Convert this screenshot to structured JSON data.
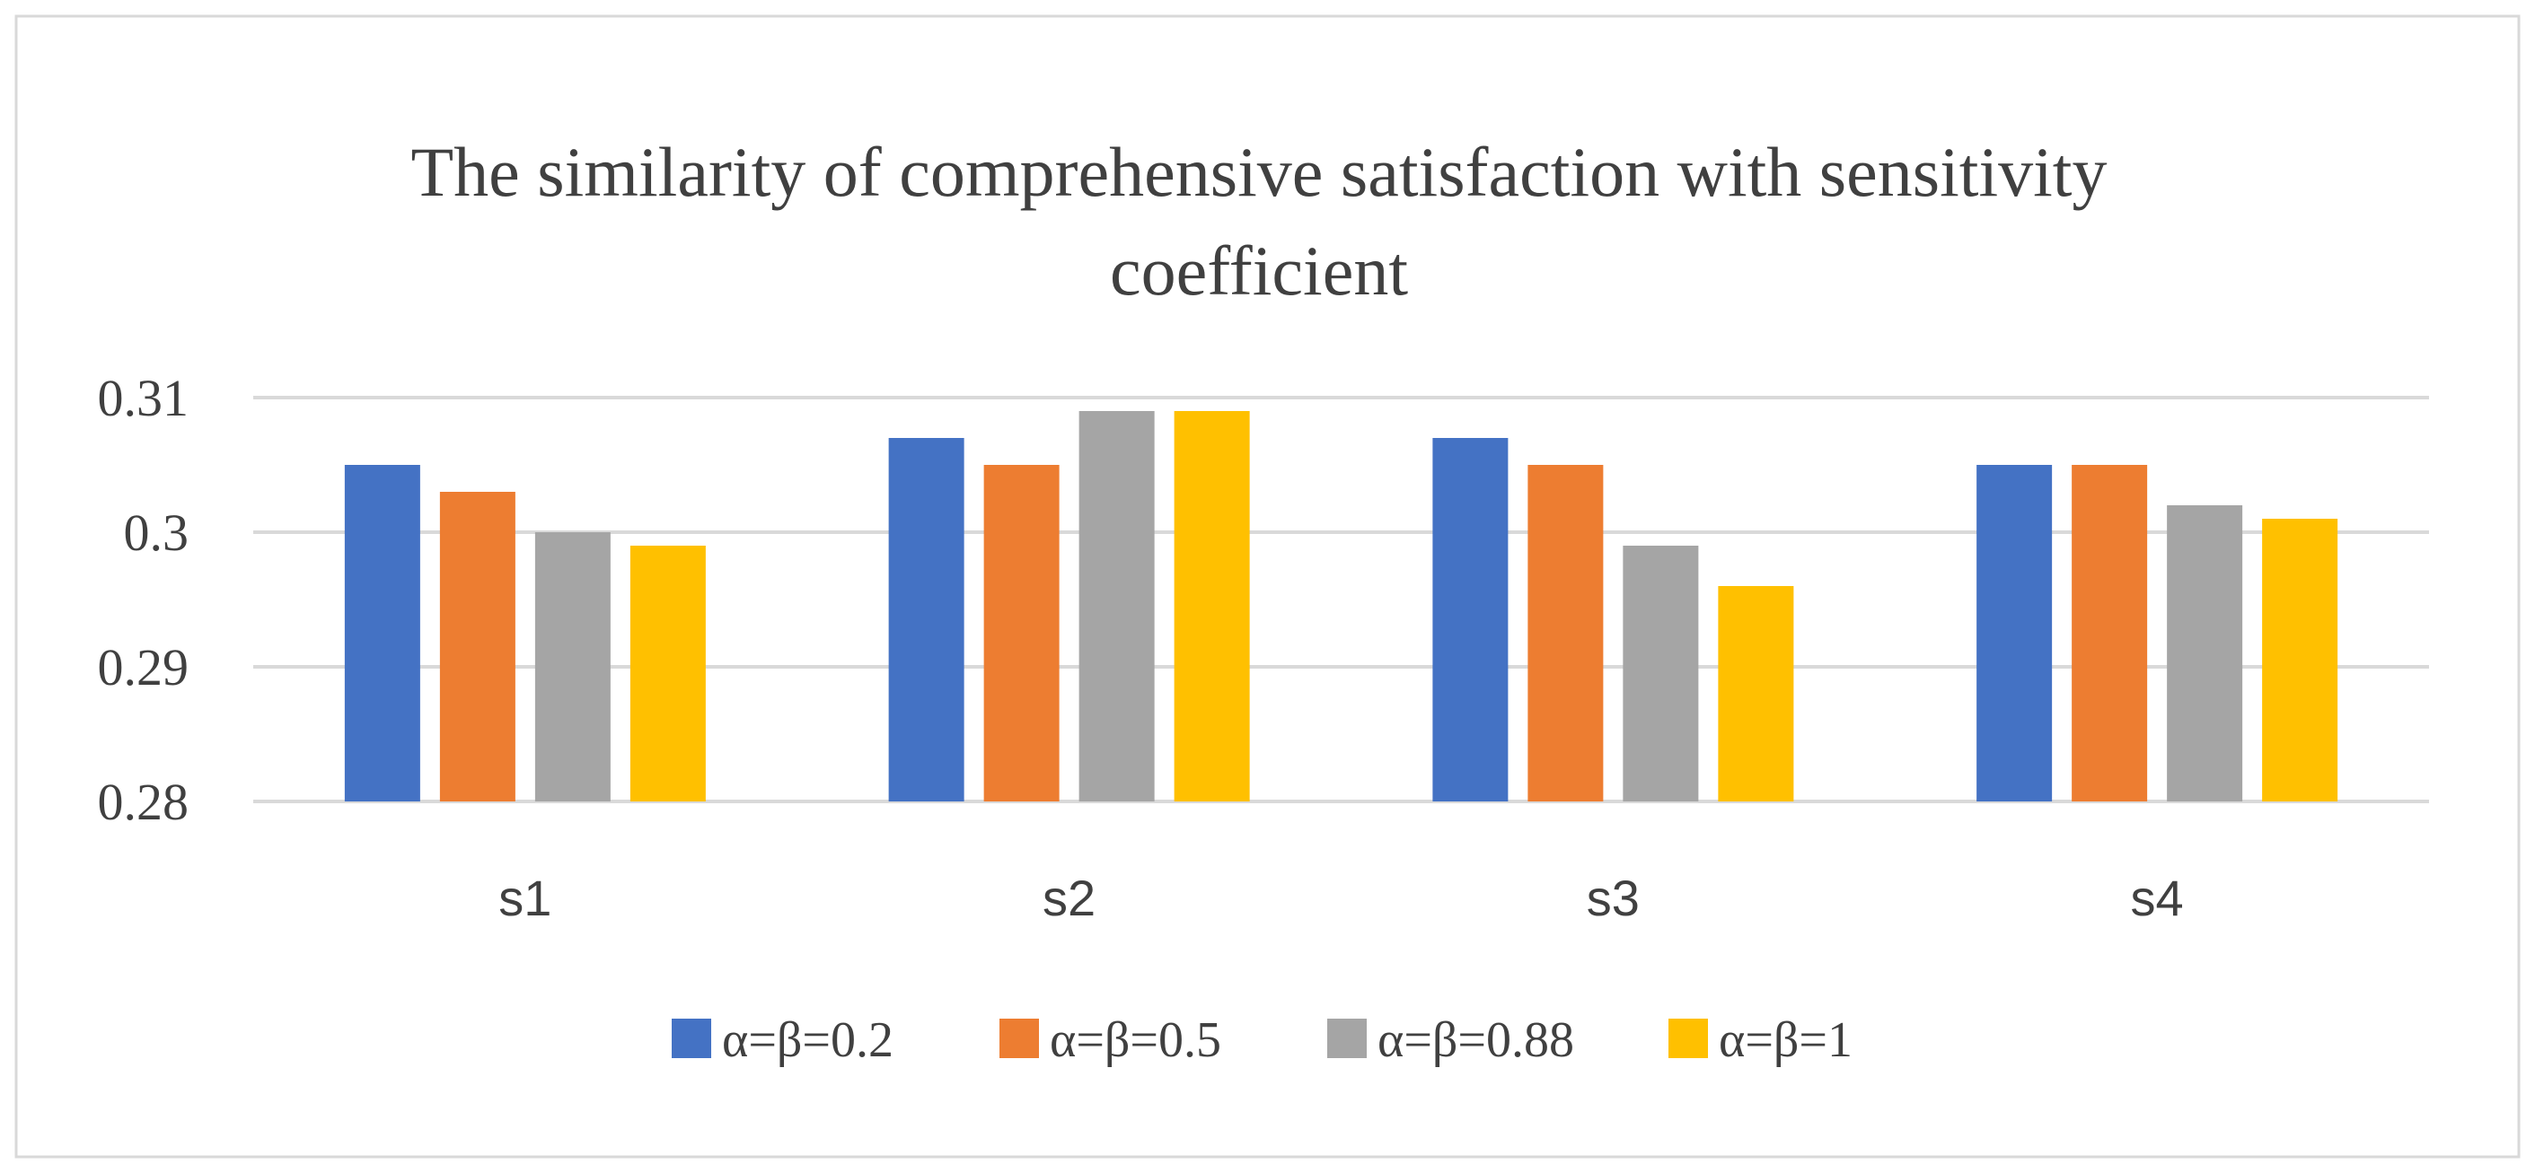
{
  "chart_data": {
    "type": "bar",
    "title_lines": [
      "The similarity of comprehensive satisfaction with sensitivity",
      "coefficient"
    ],
    "xlabel": "",
    "ylabel": "",
    "categories": [
      "s1",
      "s2",
      "s3",
      "s4"
    ],
    "ylim": [
      0.28,
      0.31
    ],
    "yticks": [
      {
        "value": 0.28,
        "label": "0.28"
      },
      {
        "value": 0.29,
        "label": "0.29"
      },
      {
        "value": 0.3,
        "label": "0.3"
      },
      {
        "value": 0.31,
        "label": "0.31"
      }
    ],
    "grid": true,
    "legend_position": "bottom",
    "series": [
      {
        "name": "α=β=0.2",
        "color": "#4472C4",
        "values": [
          0.305,
          0.307,
          0.307,
          0.305
        ]
      },
      {
        "name": "α=β=0.5",
        "color": "#ED7D31",
        "values": [
          0.303,
          0.305,
          0.305,
          0.305
        ]
      },
      {
        "name": "α=β=0.88",
        "color": "#A5A5A5",
        "values": [
          0.3,
          0.309,
          0.299,
          0.302
        ]
      },
      {
        "name": "α=β=1",
        "color": "#FFC000",
        "values": [
          0.299,
          0.309,
          0.296,
          0.301
        ]
      }
    ]
  }
}
